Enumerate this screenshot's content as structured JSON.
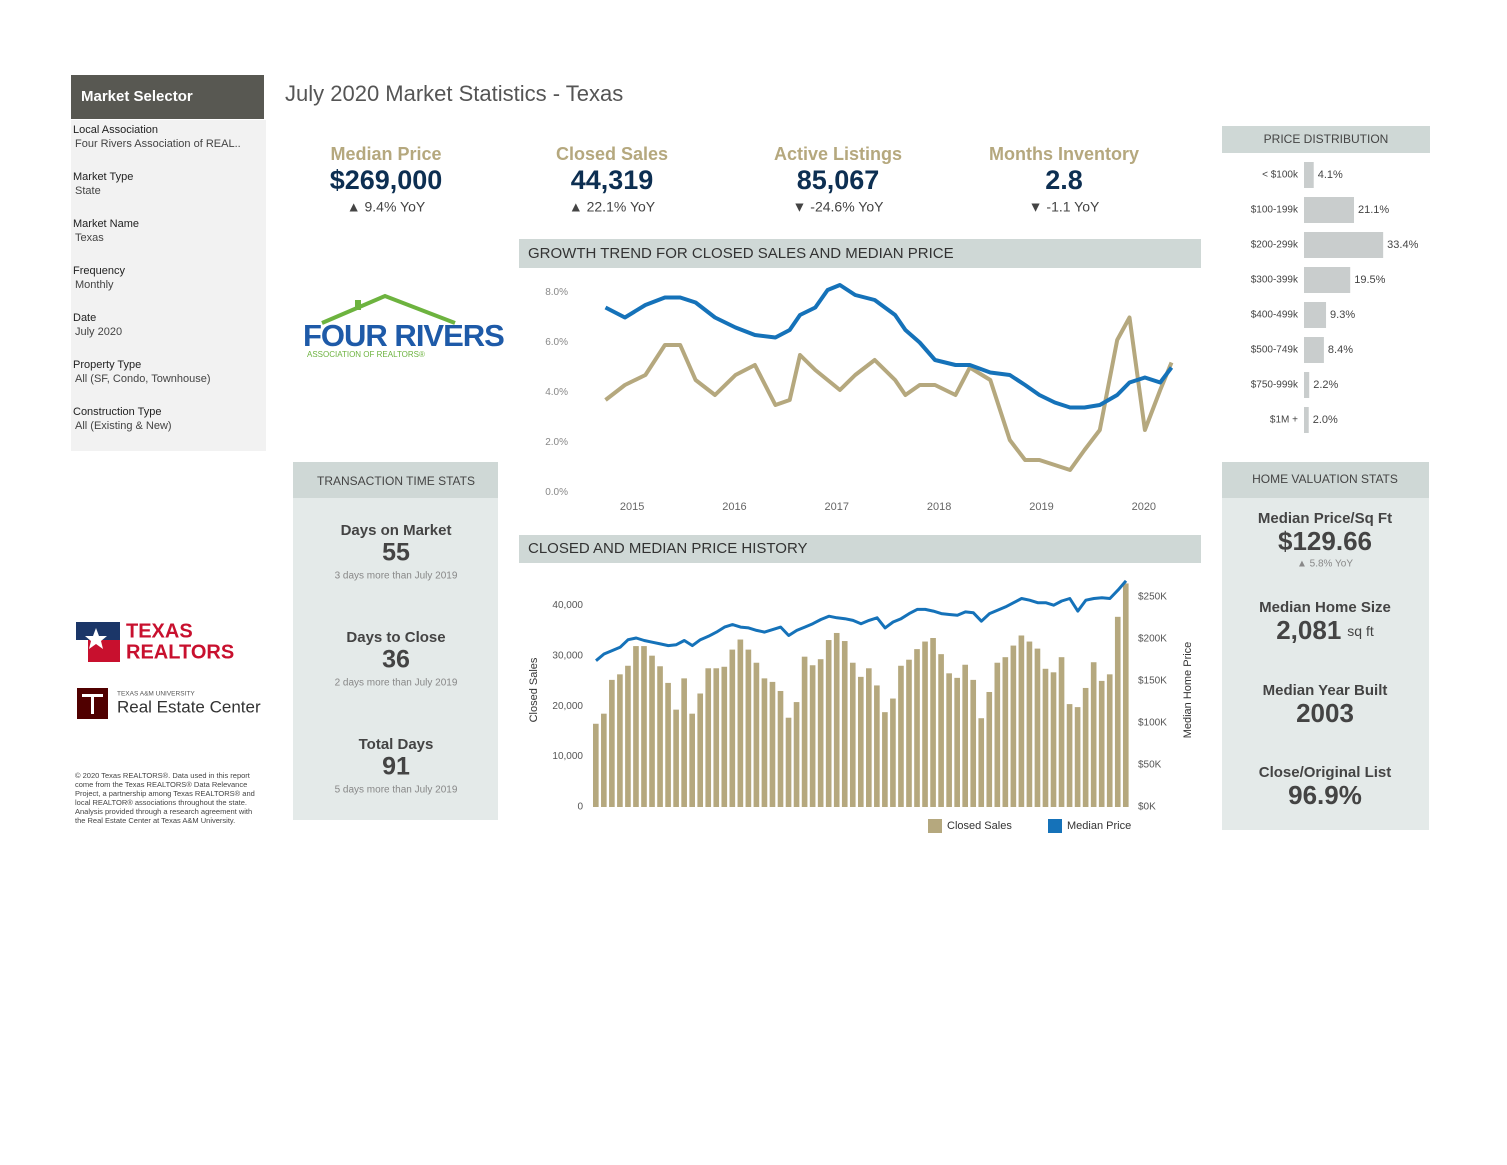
{
  "sidebar": {
    "title": "Market Selector",
    "fields": [
      {
        "label": "Local Association",
        "value": "Four Rivers Association of REAL.."
      },
      {
        "label": "Market Type",
        "value": "State"
      },
      {
        "label": "Market Name",
        "value": "Texas"
      },
      {
        "label": "Frequency",
        "value": "Monthly"
      },
      {
        "label": "Date",
        "value": "July 2020"
      },
      {
        "label": "Property Type",
        "value": "All (SF, Condo, Townhouse)"
      },
      {
        "label": "Construction Type",
        "value": "All (Existing & New)"
      }
    ]
  },
  "header": {
    "title": "July 2020 Market Statistics - Texas"
  },
  "kpis": [
    {
      "label": "Median Price",
      "value": "$269,000",
      "change": "▲ 9.4% YoY"
    },
    {
      "label": "Closed Sales",
      "value": "44,319",
      "change": "▲ 22.1% YoY"
    },
    {
      "label": "Active Listings",
      "value": "85,067",
      "change": "▼ -24.6% YoY"
    },
    {
      "label": "Months Inventory",
      "value": "2.8",
      "change": "▼ -1.1 YoY"
    }
  ],
  "logos": {
    "four_rivers": {
      "name": "FOUR RIVERS",
      "tagline": "ASSOCIATION OF REALTORS®"
    },
    "texas_realtors": {
      "line1": "TEXAS",
      "line2": "REALTORS"
    },
    "real_estate_center": {
      "university": "TEXAS A&M UNIVERSITY",
      "name": "Real Estate Center"
    }
  },
  "disclaimer": "© 2020 Texas REALTORS®. Data used in this report come from the Texas REALTORS® Data Relevance Project, a partnership among Texas REALTORS® and local REALTOR® associations throughout the state. Analysis provided through a research agreement with the Real Estate Center at Texas A&M University.",
  "transaction_stats": {
    "title": "TRANSACTION TIME STATS",
    "items": [
      {
        "label": "Days on Market",
        "value": "55",
        "note": "3 days more than July 2019"
      },
      {
        "label": "Days to Close",
        "value": "36",
        "note": "2 days more than July 2019"
      },
      {
        "label": "Total Days",
        "value": "91",
        "note": "5 days more than July 2019"
      }
    ]
  },
  "home_valuation": {
    "title": "HOME VALUATION STATS",
    "items": [
      {
        "label": "Median Price/Sq Ft",
        "value": "$129.66",
        "note": "▲ 5.8% YoY"
      },
      {
        "label": "Median Home Size",
        "value": "2,081",
        "unit": "sq ft"
      },
      {
        "label": "Median Year Built",
        "value": "2003"
      },
      {
        "label": "Close/Original List",
        "value": "96.9%"
      }
    ]
  },
  "chart_data": [
    {
      "type": "bar",
      "orientation": "horizontal",
      "title": "PRICE DISTRIBUTION",
      "categories": [
        "< $100k",
        "$100-199k",
        "$200-299k",
        "$300-399k",
        "$400-499k",
        "$500-749k",
        "$750-999k",
        "$1M +"
      ],
      "values": [
        4.1,
        21.1,
        33.4,
        19.5,
        9.3,
        8.4,
        2.2,
        2.0
      ],
      "value_labels": [
        "4.1%",
        "21.1%",
        "33.4%",
        "19.5%",
        "9.3%",
        "8.4%",
        "2.2%",
        "2.0%"
      ],
      "color": "#c9cdcd"
    },
    {
      "type": "line",
      "title": "GROWTH TREND FOR CLOSED SALES AND MEDIAN PRICE",
      "x": [
        2014.74,
        2014.93,
        2015.13,
        2015.32,
        2015.47,
        2015.62,
        2015.81,
        2016.01,
        2016.2,
        2016.4,
        2016.54,
        2016.64,
        2016.79,
        2016.91,
        2017.03,
        2017.18,
        2017.37,
        2017.57,
        2017.67,
        2017.81,
        2017.96,
        2018.16,
        2018.3,
        2018.5,
        2018.69,
        2018.84,
        2018.98,
        2019.13,
        2019.28,
        2019.42,
        2019.57,
        2019.74,
        2019.86,
        2020.01,
        2020.16,
        2020.27
      ],
      "xlim": [
        2014.1,
        2020.5
      ],
      "xticks": [
        2015,
        2016,
        2017,
        2018,
        2019,
        2020
      ],
      "ylim": [
        -0.1,
        8.9
      ],
      "yticks": [
        {
          "value": 0,
          "label": "0.0%"
        },
        {
          "value": 2,
          "label": "2.0%"
        },
        {
          "value": 4,
          "label": "4.0%"
        },
        {
          "value": 6,
          "label": "6.0%"
        },
        {
          "value": 8,
          "label": "8.0%"
        }
      ],
      "series": [
        {
          "color": "#b5a87e",
          "values": [
            3.7,
            4.3,
            4.7,
            5.9,
            5.9,
            4.5,
            3.9,
            4.7,
            5.1,
            3.5,
            3.7,
            5.5,
            4.9,
            4.5,
            4.1,
            4.7,
            5.3,
            4.5,
            3.9,
            4.3,
            4.3,
            3.9,
            5.0,
            4.5,
            2.1,
            1.3,
            1.3,
            1.1,
            0.9,
            1.7,
            2.5,
            6.1,
            7.0,
            2.5,
            4.1,
            5.2
          ]
        },
        {
          "color": "#1572b9",
          "values": [
            7.4,
            7.0,
            7.5,
            7.8,
            7.8,
            7.6,
            7.0,
            6.6,
            6.3,
            6.2,
            6.5,
            7.1,
            7.4,
            8.1,
            8.3,
            7.9,
            7.7,
            7.1,
            6.5,
            6.0,
            5.3,
            5.1,
            5.1,
            4.8,
            4.7,
            4.3,
            3.9,
            3.6,
            3.4,
            3.4,
            3.5,
            3.9,
            4.4,
            4.6,
            4.4,
            5.0
          ]
        }
      ]
    },
    {
      "type": "combo",
      "title": "CLOSED AND MEDIAN PRICE HISTORY",
      "y_label": "Closed Sales",
      "y2_label": "Median Home Price",
      "categories": [
        null,
        null,
        null,
        null,
        null,
        null,
        null,
        null,
        null,
        null,
        null,
        null,
        null,
        null,
        null,
        null,
        null,
        null,
        null,
        null,
        null,
        null,
        null,
        null,
        null,
        null,
        null,
        null,
        null,
        null,
        null,
        null,
        null,
        null,
        null,
        null,
        null,
        null,
        null,
        null,
        null,
        null,
        null,
        null,
        null,
        null,
        null,
        null,
        null,
        null,
        null,
        null,
        null,
        null,
        null,
        null,
        null,
        null,
        null,
        null,
        null,
        null,
        null,
        null,
        null,
        null,
        null
      ],
      "ylim": [
        0,
        45000
      ],
      "yticks": [
        0,
        {
          "value": 10000,
          "label": "10,000"
        },
        {
          "value": 20000,
          "label": "20,000"
        },
        {
          "value": 30000,
          "label": "30,000"
        },
        {
          "value": 40000,
          "label": "40,000"
        }
      ],
      "y2lim": [
        0,
        270000
      ],
      "y2ticks": [
        {
          "value": 0,
          "label": "$0K"
        },
        {
          "value": 50000,
          "label": "$50K"
        },
        {
          "value": 100000,
          "label": "$100K"
        },
        {
          "value": 150000,
          "label": "$150K"
        },
        {
          "value": 200000,
          "label": "$200K"
        },
        {
          "value": 250000,
          "label": "$250K"
        }
      ],
      "series": [
        {
          "name": "Closed Sales",
          "type": "bar",
          "color": "#b5a87e",
          "values": [
            16500,
            18500,
            25200,
            26300,
            28000,
            31900,
            31900,
            30000,
            27900,
            24600,
            19300,
            25500,
            18500,
            22500,
            27500,
            27500,
            27800,
            31200,
            33200,
            31200,
            28600,
            25500,
            24800,
            23000,
            17700,
            20800,
            29800,
            28100,
            29300,
            33100,
            34500,
            32900,
            28600,
            25800,
            27500,
            24100,
            18800,
            21500,
            28000,
            29200,
            31300,
            32800,
            33500,
            30300,
            26500,
            25600,
            28200,
            25200,
            17600,
            22800,
            28600,
            29700,
            32000,
            34000,
            32800,
            31400,
            27400,
            26700,
            29700,
            20400,
            19800,
            23600,
            28700,
            25000,
            26300,
            37700,
            44319
          ]
        },
        {
          "name": "Median Price",
          "type": "line",
          "axis": "y2",
          "color": "#1572b9",
          "values": [
            174000,
            182000,
            186000,
            190000,
            199000,
            201000,
            198000,
            196000,
            194000,
            192000,
            193000,
            198000,
            192000,
            199000,
            203000,
            208000,
            214000,
            217000,
            214000,
            213000,
            210000,
            208000,
            211000,
            214000,
            204000,
            210000,
            214000,
            218000,
            223000,
            227000,
            225000,
            224000,
            222000,
            218000,
            222000,
            225000,
            213000,
            220000,
            224000,
            230000,
            235000,
            235000,
            233000,
            230000,
            229000,
            228000,
            232000,
            231000,
            221000,
            230000,
            234000,
            238000,
            243000,
            248000,
            246000,
            243000,
            243000,
            240000,
            245000,
            248000,
            233000,
            246000,
            248000,
            249000,
            248000,
            258000,
            269000
          ]
        }
      ]
    }
  ]
}
